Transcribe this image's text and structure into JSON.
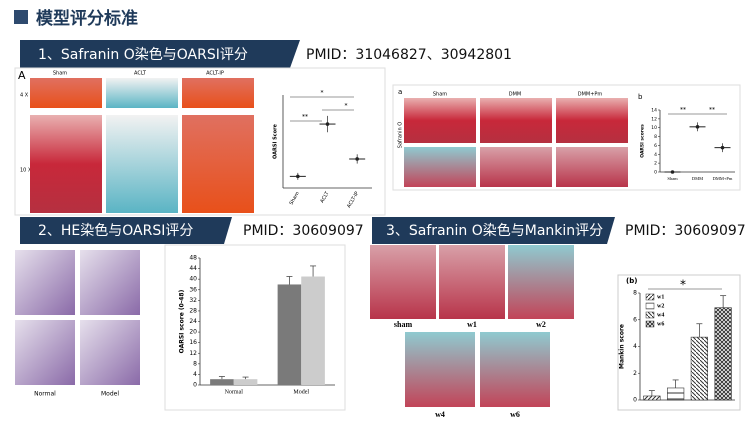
{
  "header": {
    "title": "模型评分标准"
  },
  "sections": [
    {
      "title": "1、Safranin O染色与OARSI评分",
      "pmid": "PMID：31046827、30942801"
    },
    {
      "title": "2、HE染色与OARSI评分",
      "pmid": "PMID：30609097"
    },
    {
      "title": "3、Safranin O染色与Mankin评分",
      "pmid": "PMID：30609097"
    }
  ],
  "figure1": {
    "panel": "A",
    "columns": [
      "Sham",
      "ACLT",
      "ACLT-IP"
    ],
    "rows": [
      "4 X",
      "10 X"
    ]
  },
  "figure2": {
    "panel": "a",
    "columns": [
      "Sham",
      "DMM",
      "DMM+Pm"
    ],
    "row_label": "Safranin O",
    "chart_panel": "b"
  },
  "figure3": {
    "labels": [
      "Normal",
      "Model"
    ]
  },
  "figure4": {
    "labels": [
      "sham",
      "w1",
      "w2",
      "w4",
      "w6"
    ]
  },
  "chart_data": [
    {
      "type": "dot",
      "ylabel": "OARSI Score",
      "categories": [
        "Sham",
        "ACLT",
        "ACLT-IP"
      ],
      "series": [
        {
          "color": "#222222",
          "values": [
            1,
            5.5,
            2.5
          ],
          "errors": [
            0.3,
            0.7,
            0.4
          ]
        }
      ],
      "ylim": [
        0,
        8
      ],
      "annotations": [
        "*",
        "**",
        "*"
      ]
    },
    {
      "type": "dot",
      "ylabel": "OARSI scores",
      "categories": [
        "Sham",
        "DMM",
        "DMM+Pm"
      ],
      "series": [
        {
          "color": "#222222",
          "values": [
            0,
            10.2,
            5.5
          ],
          "errors": [
            0,
            1.0,
            1.0
          ]
        }
      ],
      "ylim": [
        0,
        14
      ],
      "yticks": [
        0,
        2,
        4,
        6,
        8,
        10,
        12,
        14
      ],
      "annotations": [
        "**",
        "**"
      ]
    },
    {
      "type": "bar",
      "ylabel": "OARSI score (0-48)",
      "categories": [
        "Normal",
        "Model"
      ],
      "series": [
        {
          "color": "#7a7a7a",
          "values": [
            2.2,
            38
          ],
          "errors": [
            1,
            3
          ]
        },
        {
          "color": "#cccccc",
          "values": [
            2.2,
            41
          ],
          "errors": [
            0.8,
            4
          ]
        }
      ],
      "ylim": [
        0,
        48
      ],
      "yticks": [
        0,
        4,
        8,
        12,
        16,
        20,
        24,
        28,
        32,
        36,
        40,
        44,
        48
      ]
    },
    {
      "type": "bar",
      "title": "(b)",
      "ylabel": "Mankin score",
      "categories": [
        "w1",
        "w2",
        "w4",
        "w6"
      ],
      "series": [
        {
          "color": "#555555",
          "values": [
            0.3,
            0.9,
            4.7,
            6.9
          ],
          "errors": [
            0.4,
            0.6,
            1.0,
            0.9
          ]
        }
      ],
      "ylim": [
        0,
        8
      ],
      "yticks": [
        0,
        2,
        4,
        6,
        8
      ],
      "annotations": [
        "*"
      ],
      "legend": true
    }
  ]
}
